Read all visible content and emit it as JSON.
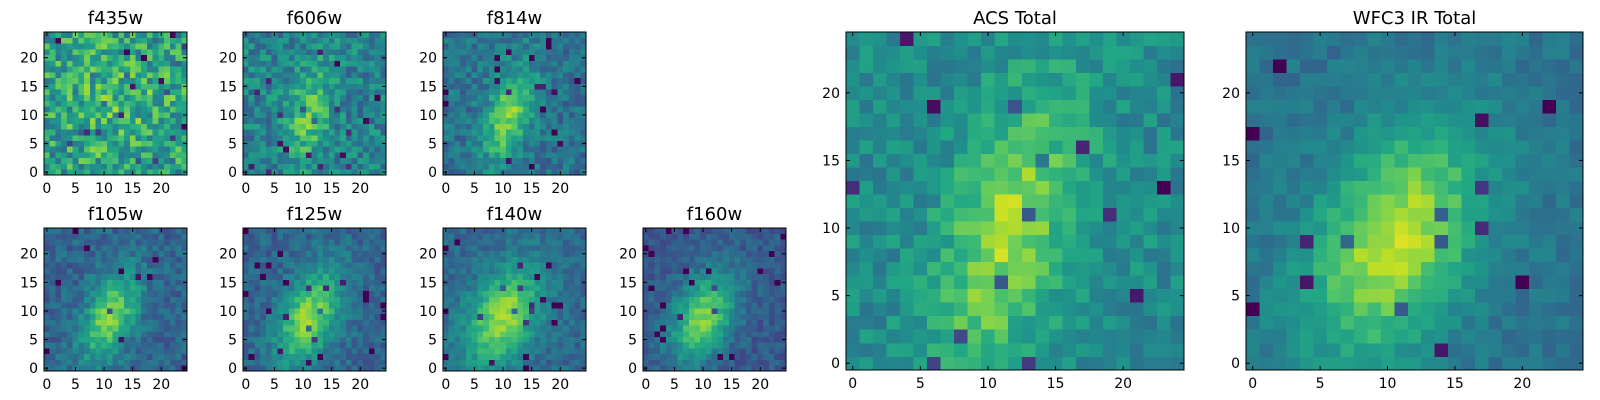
{
  "colormap": "viridis",
  "chart_data": [
    {
      "type": "heatmap",
      "title": "f435w",
      "xlim": [
        0,
        24
      ],
      "ylim": [
        0,
        24
      ],
      "xticks": [
        0,
        5,
        10,
        15,
        20
      ],
      "yticks": [
        0,
        5,
        10,
        15,
        20
      ],
      "grid": false,
      "pattern": "noise",
      "source": {
        "cx": 12.0,
        "cy": 12.0,
        "sx": 9.0,
        "sy": 9.0,
        "rho": 0.0,
        "amp": 0.15,
        "noise": 0.45,
        "base": 0.52,
        "seed": 11
      }
    },
    {
      "type": "heatmap",
      "title": "f606w",
      "xlim": [
        0,
        24
      ],
      "ylim": [
        0,
        24
      ],
      "xticks": [
        0,
        5,
        10,
        15,
        20
      ],
      "yticks": [
        0,
        5,
        10,
        15,
        20
      ],
      "grid": false,
      "pattern": "weak elongated source",
      "source": {
        "cx": 11.0,
        "cy": 10.0,
        "sx": 2.5,
        "sy": 6.0,
        "rho": 0.3,
        "amp": 0.3,
        "noise": 0.32,
        "base": 0.45,
        "seed": 23
      }
    },
    {
      "type": "heatmap",
      "title": "f814w",
      "xlim": [
        0,
        24
      ],
      "ylim": [
        0,
        24
      ],
      "xticks": [
        0,
        5,
        10,
        15,
        20
      ],
      "yticks": [
        0,
        5,
        10,
        15,
        20
      ],
      "grid": false,
      "pattern": "elongated source",
      "source": {
        "cx": 11.0,
        "cy": 10.0,
        "sx": 3.0,
        "sy": 6.0,
        "rho": 0.45,
        "amp": 0.42,
        "noise": 0.24,
        "base": 0.38,
        "seed": 37
      }
    },
    {
      "type": "heatmap",
      "title": "f105w",
      "xlim": [
        0,
        24
      ],
      "ylim": [
        0,
        24
      ],
      "xticks": [
        0,
        5,
        10,
        15,
        20
      ],
      "yticks": [
        0,
        5,
        10,
        15,
        20
      ],
      "grid": false,
      "pattern": "central source",
      "source": {
        "cx": 11.0,
        "cy": 9.0,
        "sx": 3.5,
        "sy": 5.5,
        "rho": 0.45,
        "amp": 0.48,
        "noise": 0.2,
        "base": 0.32,
        "seed": 41
      }
    },
    {
      "type": "heatmap",
      "title": "f125w",
      "xlim": [
        0,
        24
      ],
      "ylim": [
        0,
        24
      ],
      "xticks": [
        0,
        5,
        10,
        15,
        20
      ],
      "yticks": [
        0,
        5,
        10,
        15,
        20
      ],
      "grid": false,
      "pattern": "central source",
      "source": {
        "cx": 11.0,
        "cy": 9.0,
        "sx": 4.0,
        "sy": 6.0,
        "rho": 0.45,
        "amp": 0.5,
        "noise": 0.18,
        "base": 0.32,
        "seed": 53
      }
    },
    {
      "type": "heatmap",
      "title": "f140w",
      "xlim": [
        0,
        24
      ],
      "ylim": [
        0,
        24
      ],
      "xticks": [
        0,
        5,
        10,
        15,
        20
      ],
      "yticks": [
        0,
        5,
        10,
        15,
        20
      ],
      "grid": false,
      "pattern": "central source",
      "source": {
        "cx": 10.0,
        "cy": 9.0,
        "sx": 4.5,
        "sy": 6.0,
        "rho": 0.4,
        "amp": 0.52,
        "noise": 0.16,
        "base": 0.34,
        "seed": 67
      }
    },
    {
      "type": "heatmap",
      "title": "f160w",
      "xlim": [
        0,
        24
      ],
      "ylim": [
        0,
        24
      ],
      "xticks": [
        0,
        5,
        10,
        15,
        20
      ],
      "yticks": [
        0,
        5,
        10,
        15,
        20
      ],
      "grid": false,
      "pattern": "central source",
      "source": {
        "cx": 10.0,
        "cy": 9.0,
        "sx": 4.0,
        "sy": 5.5,
        "rho": 0.4,
        "amp": 0.52,
        "noise": 0.16,
        "base": 0.28,
        "seed": 79
      }
    },
    {
      "type": "heatmap",
      "title": "ACS Total",
      "xlim": [
        0,
        24
      ],
      "ylim": [
        0,
        24
      ],
      "xticks": [
        0,
        5,
        10,
        15,
        20
      ],
      "yticks": [
        0,
        5,
        10,
        15,
        20
      ],
      "grid": false,
      "pattern": "elongated source",
      "source": {
        "cx": 11.5,
        "cy": 10.0,
        "sx": 3.5,
        "sy": 7.0,
        "rho": 0.45,
        "amp": 0.38,
        "noise": 0.22,
        "base": 0.48,
        "seed": 97
      }
    },
    {
      "type": "heatmap",
      "title": "WFC3 IR Total",
      "xlim": [
        0,
        24
      ],
      "ylim": [
        0,
        24
      ],
      "xticks": [
        0,
        5,
        10,
        15,
        20
      ],
      "yticks": [
        0,
        5,
        10,
        15,
        20
      ],
      "grid": false,
      "pattern": "central source",
      "source": {
        "cx": 10.5,
        "cy": 9.0,
        "sx": 4.5,
        "sy": 6.0,
        "rho": 0.4,
        "amp": 0.52,
        "noise": 0.13,
        "base": 0.38,
        "seed": 113
      }
    }
  ]
}
